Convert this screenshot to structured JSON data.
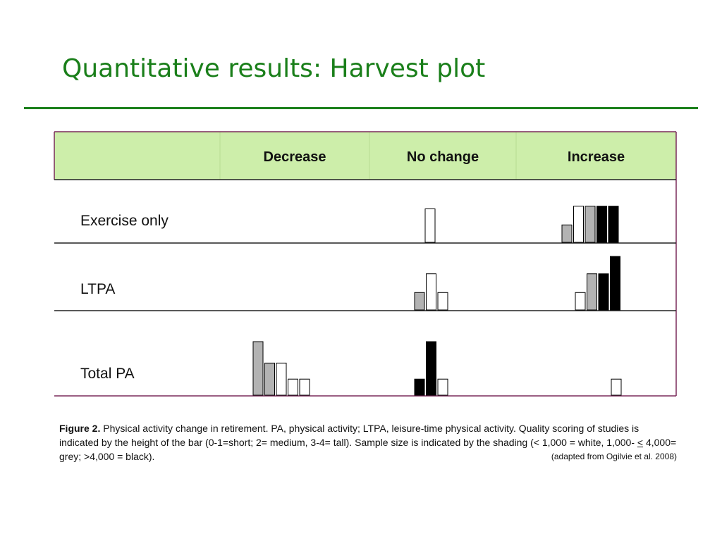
{
  "slide": {
    "title": "Quantitative results: Harvest plot"
  },
  "chart_data": {
    "type": "harvest plot",
    "columns": [
      "Decrease",
      "No change",
      "Increase"
    ],
    "rows": [
      "Exercise only",
      "LTPA",
      "Total PA"
    ],
    "bar_height_meaning": "quality score (0-1 short, 2 medium, 3-4 tall)",
    "shading_meaning": "sample size (white < 1,000; grey 1,000-4,000; black > 4,000)",
    "colors": {
      "header_bg": "#cdeeaa",
      "white": "#ffffff",
      "grey": "#b3b3b3",
      "black": "#000000",
      "border": "#7a2a5a"
    },
    "cells": [
      {
        "row": "Exercise only",
        "column": "Decrease",
        "bars": []
      },
      {
        "row": "Exercise only",
        "column": "No change",
        "bars": [
          {
            "shade": "white",
            "score": 2.5
          }
        ]
      },
      {
        "row": "Exercise only",
        "column": "Increase",
        "bars": [
          {
            "shade": "grey",
            "score": 1.3
          },
          {
            "shade": "white",
            "score": 2.7
          },
          {
            "shade": "grey",
            "score": 2.7
          },
          {
            "shade": "black",
            "score": 2.7
          },
          {
            "shade": "black",
            "score": 2.7
          }
        ]
      },
      {
        "row": "LTPA",
        "column": "Decrease",
        "bars": []
      },
      {
        "row": "LTPA",
        "column": "No change",
        "bars": [
          {
            "shade": "grey",
            "score": 1.3
          },
          {
            "shade": "white",
            "score": 2.7
          },
          {
            "shade": "white",
            "score": 1.3
          }
        ]
      },
      {
        "row": "LTPA",
        "column": "Increase",
        "bars": [
          {
            "shade": "white",
            "score": 1.3
          },
          {
            "shade": "grey",
            "score": 2.7
          },
          {
            "shade": "black",
            "score": 2.7
          },
          {
            "shade": "black",
            "score": 4
          }
        ]
      },
      {
        "row": "Total PA",
        "column": "Decrease",
        "bars": [
          {
            "shade": "grey",
            "score": 4
          },
          {
            "shade": "grey",
            "score": 2.4
          },
          {
            "shade": "white",
            "score": 2.4
          },
          {
            "shade": "white",
            "score": 1.2
          },
          {
            "shade": "white",
            "score": 1.2
          }
        ]
      },
      {
        "row": "Total PA",
        "column": "No change",
        "bars": [
          {
            "shade": "black",
            "score": 1.2
          },
          {
            "shade": "black",
            "score": 4
          },
          {
            "shade": "white",
            "score": 1.2
          }
        ]
      },
      {
        "row": "Total PA",
        "column": "Increase",
        "bars": [
          {
            "shade": "white",
            "score": 1.2
          }
        ]
      }
    ]
  },
  "caption": {
    "figure_label": "Figure 2.",
    "text_1": " Physical activity change in retirement. PA, physical activity; LTPA, leisure-time physical activity. Quality scoring of studies is indicated by the height of the bar (0-1=short; 2= medium, 3-4= tall). Sample size is indicated by the shading (< 1,000 = white, 1,000- ",
    "le_symbol": "<",
    "text_2": " 4,000= grey; >4,000 = black).",
    "source": "(adapted from Ogilvie et al. 2008)"
  }
}
